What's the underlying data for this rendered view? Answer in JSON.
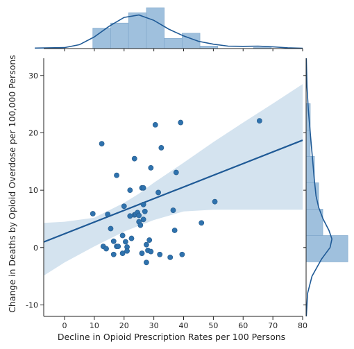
{
  "chart_data": {
    "type": "scatter",
    "variant": "jointplot with linear regression fit, 95% confidence band and marginal histograms with density curves",
    "xlabel": "Decline in Opioid Prescription Rates per 100 Persons",
    "ylabel": "Change in Deaths by Opioid Overdose per 100,000 Persons",
    "xlim": [
      -7,
      80
    ],
    "ylim": [
      -12,
      33
    ],
    "x_ticks": [
      0,
      10,
      20,
      30,
      40,
      50,
      60,
      70,
      80
    ],
    "y_ticks": [
      -10,
      0,
      10,
      20,
      30
    ],
    "grid": false,
    "colors": {
      "points": "#2f72ad",
      "line": "#1f5a96",
      "band": "#c6d9ea",
      "hist": "#9fc0dd",
      "hist_edge": "#7ea6ca",
      "kde": "#1f5a96"
    },
    "points": [
      [
        9.5,
        5.9
      ],
      [
        12.5,
        18.1
      ],
      [
        13,
        0.2
      ],
      [
        14,
        -0.2
      ],
      [
        14.5,
        5.8
      ],
      [
        15.5,
        3.3
      ],
      [
        16.5,
        -1.2
      ],
      [
        16.5,
        1.1
      ],
      [
        17.5,
        0.2
      ],
      [
        17.5,
        12.6
      ],
      [
        18,
        0.2
      ],
      [
        19.5,
        2.1
      ],
      [
        19.5,
        -1.0
      ],
      [
        20,
        7.2
      ],
      [
        20.5,
        1.0
      ],
      [
        21,
        0.1
      ],
      [
        21,
        -0.6
      ],
      [
        22,
        5.5
      ],
      [
        22,
        10
      ],
      [
        22.5,
        1.6
      ],
      [
        23.5,
        15.5
      ],
      [
        23.5,
        5.7
      ],
      [
        24,
        5.8
      ],
      [
        24.5,
        6.1
      ],
      [
        25,
        5.6
      ],
      [
        25,
        4.5
      ],
      [
        25.5,
        3.9
      ],
      [
        26,
        10.4
      ],
      [
        26,
        -1.0
      ],
      [
        26.5,
        10.4
      ],
      [
        26.5,
        7.5
      ],
      [
        26.5,
        4.9
      ],
      [
        27,
        6.3
      ],
      [
        27.5,
        0.5
      ],
      [
        27.5,
        -2.6
      ],
      [
        28,
        -0.5
      ],
      [
        28.5,
        1.3
      ],
      [
        29,
        13.9
      ],
      [
        29,
        -0.7
      ],
      [
        30.5,
        21.4
      ],
      [
        31.5,
        9.6
      ],
      [
        32.5,
        17.4
      ],
      [
        32,
        -1.2
      ],
      [
        35.5,
        -1.7
      ],
      [
        36.5,
        6.5
      ],
      [
        37,
        3.0
      ],
      [
        37.5,
        13.1
      ],
      [
        39,
        21.8
      ],
      [
        39.5,
        -1.2
      ],
      [
        46,
        4.3
      ],
      [
        50.5,
        8.0
      ],
      [
        65.5,
        22.1
      ]
    ],
    "regression": {
      "intercept": 2.4,
      "slope": 0.204
    },
    "band": {
      "x": [
        -7,
        0,
        10,
        20,
        25,
        30,
        40,
        50,
        60,
        70,
        80
      ],
      "upper": [
        4.3,
        4.5,
        5.2,
        7.8,
        9.4,
        11.3,
        14.8,
        18.4,
        21.8,
        25.1,
        28.5
      ],
      "lower": [
        -4.9,
        -2.6,
        0.2,
        2.8,
        3.8,
        4.8,
        6.3,
        6.6,
        6.6,
        6.6,
        6.6
      ]
    },
    "marginal_x": {
      "bins": [
        9.5,
        15.5,
        21.5,
        27.5,
        33.5,
        39.5,
        45.5,
        51.5,
        57.5,
        63.5,
        69.5
      ],
      "counts": [
        4,
        5,
        7,
        8,
        2,
        3,
        0.5,
        0,
        0,
        0.2
      ],
      "kde": [
        [
          -10,
          0.1
        ],
        [
          0,
          0.2
        ],
        [
          5,
          0.8
        ],
        [
          10,
          2.4
        ],
        [
          15,
          4.6
        ],
        [
          20,
          6.4
        ],
        [
          25,
          6.9
        ],
        [
          30,
          5.8
        ],
        [
          35,
          4.0
        ],
        [
          40,
          2.6
        ],
        [
          45,
          1.5
        ],
        [
          50,
          0.9
        ],
        [
          55,
          0.5
        ],
        [
          60,
          0.45
        ],
        [
          65,
          0.5
        ],
        [
          70,
          0.35
        ],
        [
          75,
          0.15
        ],
        [
          80,
          0.05
        ]
      ]
    },
    "marginal_y": {
      "bins": [
        -2.5,
        2.1,
        6.7,
        11.3,
        15.9,
        20.5,
        25.1
      ],
      "counts": [
        10,
        4,
        3,
        2,
        1,
        1
      ],
      "kde": [
        [
          -12,
          0.05
        ],
        [
          -8,
          0.4
        ],
        [
          -5,
          1.6
        ],
        [
          -2,
          4.2
        ],
        [
          0,
          6.5
        ],
        [
          1.5,
          7.0
        ],
        [
          3,
          6.2
        ],
        [
          5,
          4.6
        ],
        [
          7,
          3.4
        ],
        [
          9,
          2.7
        ],
        [
          12,
          2.2
        ],
        [
          15,
          1.8
        ],
        [
          18,
          1.4
        ],
        [
          21,
          1.0
        ],
        [
          24,
          0.6
        ],
        [
          28,
          0.25
        ],
        [
          33,
          0.05
        ]
      ]
    }
  }
}
